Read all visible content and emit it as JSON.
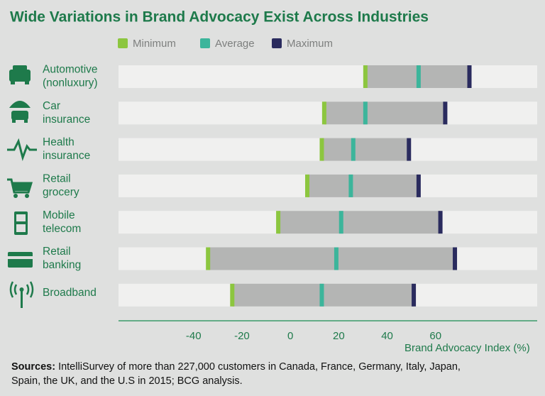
{
  "chart_data": {
    "type": "range",
    "title": "Wide Variations in Brand Advocacy Exist Across Industries",
    "categories": [
      [
        "Automotive",
        "(nonluxury)"
      ],
      [
        "Car",
        "insurance"
      ],
      [
        "Health",
        "insurance"
      ],
      [
        "Retail",
        "grocery"
      ],
      [
        "Mobile",
        "telecom"
      ],
      [
        "Retail",
        "banking"
      ],
      [
        "Broadband"
      ]
    ],
    "series": [
      {
        "name": "Minimum",
        "color": "#8cc63f",
        "values": [
          31,
          14,
          13,
          7,
          -5,
          -34,
          -24
        ]
      },
      {
        "name": "Average",
        "color": "#3cb59b",
        "values": [
          53,
          31,
          26,
          25,
          21,
          19,
          13
        ]
      },
      {
        "name": "Maximum",
        "color": "#2a2b5e",
        "values": [
          74,
          64,
          49,
          53,
          62,
          68,
          51
        ]
      }
    ],
    "range_color": "#b4b5b4",
    "xlim": [
      -71,
      102
    ],
    "xticks": [
      -40,
      -20,
      0,
      20,
      40,
      60
    ],
    "xlabel": "Brand Advocacy Index (%)",
    "legend": "top",
    "footnote": {
      "label": "Sources:",
      "text": [
        "IntelliSurvey of more than 227,000 customers in Canada, France, Germany, Italy, Japan,",
        "Spain, the UK, and the U.S in 2015; BCG analysis."
      ]
    }
  }
}
